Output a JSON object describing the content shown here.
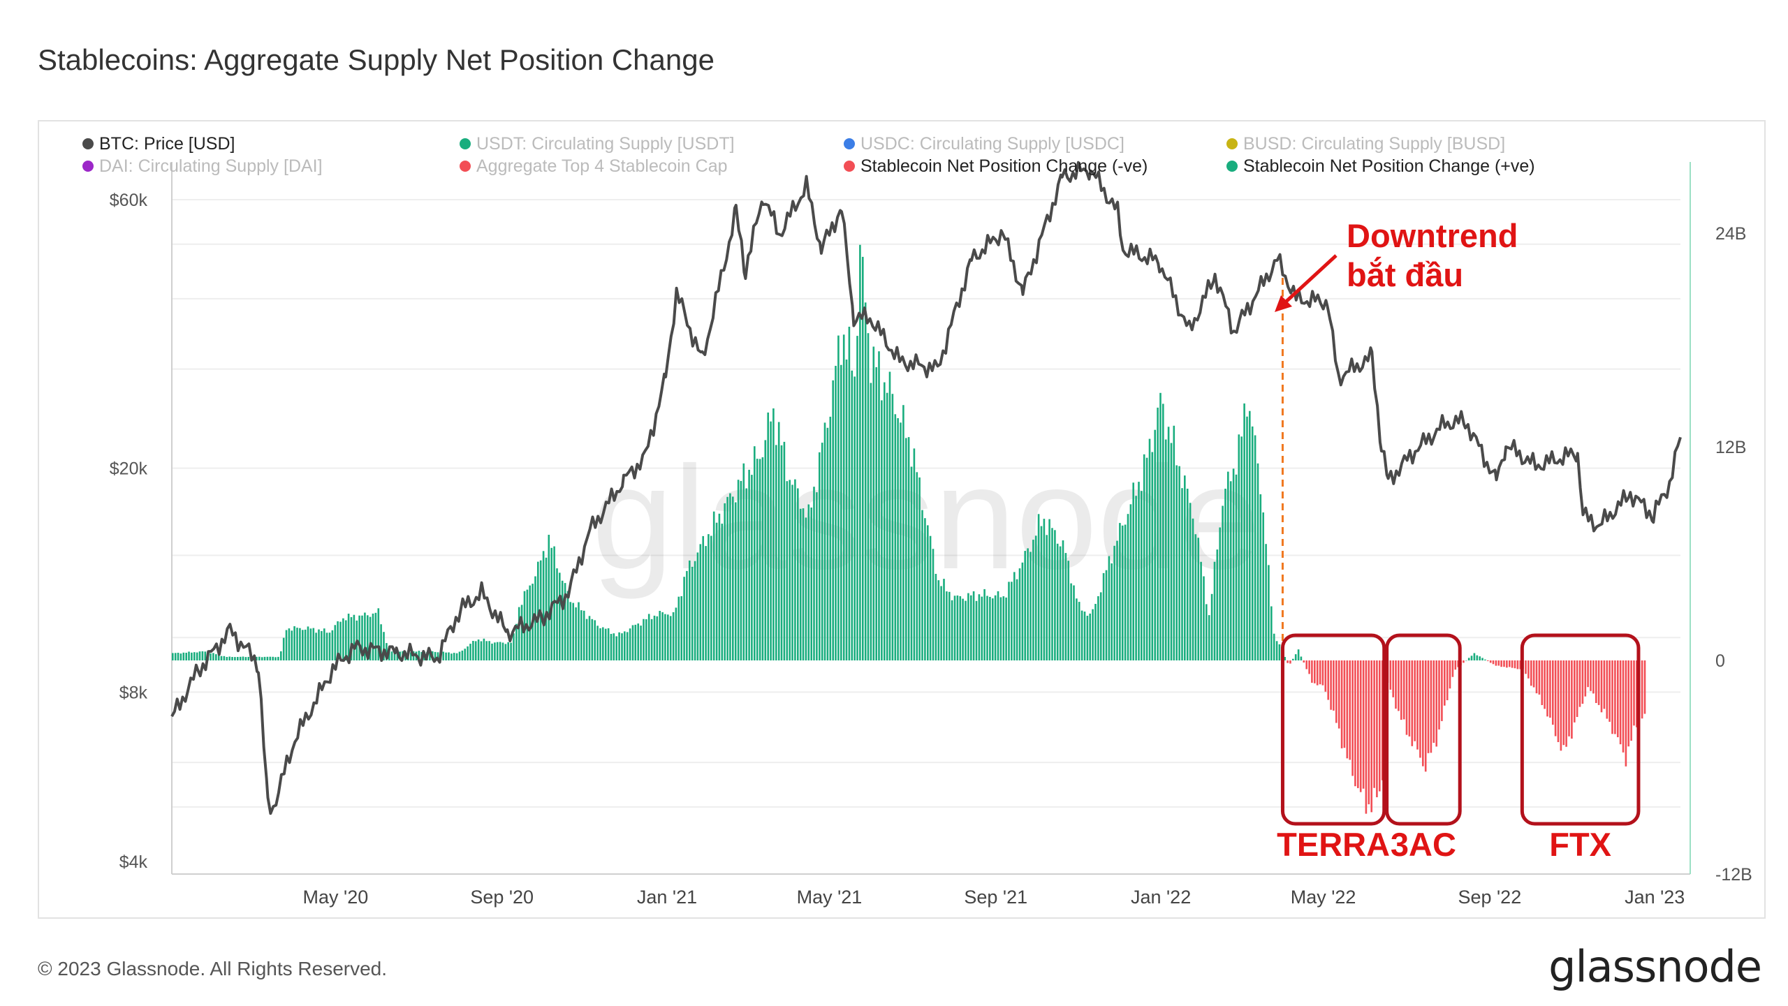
{
  "title": "Stablecoins: Aggregate Supply Net Position Change",
  "footer": "© 2023 Glassnode. All Rights Reserved.",
  "brand": "glassnode",
  "watermark": "glassnode",
  "colors": {
    "price_line": "#4a4a4a",
    "positive": "#19ad7e",
    "negative": "#f24e55",
    "annotation": "#e01414",
    "box": "#b3111b",
    "start_marker": "#f07820",
    "grid": "#eeeeee"
  },
  "legend": [
    {
      "label": "BTC: Price [USD]",
      "color": "#4a4a4a",
      "active": true
    },
    {
      "label": "USDT: Circulating Supply [USDT]",
      "color": "#19ad7e",
      "active": false
    },
    {
      "label": "USDC: Circulating Supply [USDC]",
      "color": "#3c7ee6",
      "active": false
    },
    {
      "label": "BUSD: Circulating Supply [BUSD]",
      "color": "#c8b414",
      "active": false
    },
    {
      "label": "DAI: Circulating Supply [DAI]",
      "color": "#9c27c8",
      "active": false
    },
    {
      "label": "Aggregate Top 4 Stablecoin Cap",
      "color": "#f24e55",
      "active": false
    },
    {
      "label": "Stablecoin Net Position Change (-ve)",
      "color": "#f24e55",
      "active": true
    },
    {
      "label": "Stablecoin Net Position Change (+ve)",
      "color": "#19ad7e",
      "active": true
    }
  ],
  "annotations": {
    "downtrend": [
      "Downtrend",
      "bắt đầu"
    ],
    "boxes": [
      {
        "label": "TERRA",
        "start": "2022-04-01",
        "end": "2022-06-15"
      },
      {
        "label": "3AC",
        "start": "2022-06-17",
        "end": "2022-08-10"
      },
      {
        "label": "FTX",
        "start": "2022-09-25",
        "end": "2022-12-20"
      }
    ],
    "start_date": "2022-04-01"
  },
  "chart_data": {
    "type": "line",
    "x_axis": {
      "ticks": [
        "May '20",
        "Sep '20",
        "Jan '21",
        "May '21",
        "Sep '21",
        "Jan '22",
        "May '22",
        "Sep '22",
        "Jan '23"
      ],
      "range": [
        "2020-01-01",
        "2023-01-20"
      ]
    },
    "y_left": {
      "scale": "log",
      "ticks": [
        "$60k",
        "$20k",
        "$8k",
        "$4k"
      ],
      "tick_values": [
        60000,
        20000,
        8000,
        4000
      ],
      "range": [
        3800,
        70000
      ]
    },
    "y_right": {
      "ticks": [
        "24B",
        "12B",
        "0",
        "-12B"
      ],
      "tick_values": [
        24,
        12,
        0,
        -12
      ],
      "range": [
        -12,
        28
      ],
      "unit": "B"
    },
    "series": [
      {
        "name": "BTC: Price [USD]",
        "axis": "left",
        "points": [
          [
            "2020-01-01",
            7200
          ],
          [
            "2020-01-20",
            8700
          ],
          [
            "2020-02-13",
            10300
          ],
          [
            "2020-03-05",
            9000
          ],
          [
            "2020-03-12",
            5000
          ],
          [
            "2020-03-16",
            5000
          ],
          [
            "2020-04-01",
            6600
          ],
          [
            "2020-04-29",
            8800
          ],
          [
            "2020-05-15",
            9600
          ],
          [
            "2020-06-15",
            9400
          ],
          [
            "2020-07-15",
            9200
          ],
          [
            "2020-08-01",
            11200
          ],
          [
            "2020-08-17",
            12000
          ],
          [
            "2020-09-05",
            10200
          ],
          [
            "2020-09-30",
            10800
          ],
          [
            "2020-10-20",
            12000
          ],
          [
            "2020-11-05",
            15500
          ],
          [
            "2020-11-30",
            19000
          ],
          [
            "2020-12-16",
            21000
          ],
          [
            "2020-12-31",
            29000
          ],
          [
            "2021-01-08",
            41000
          ],
          [
            "2021-01-27",
            31000
          ],
          [
            "2021-02-21",
            57000
          ],
          [
            "2021-02-28",
            45000
          ],
          [
            "2021-03-13",
            61000
          ],
          [
            "2021-03-25",
            52000
          ],
          [
            "2021-04-14",
            63500
          ],
          [
            "2021-04-25",
            49000
          ],
          [
            "2021-05-10",
            58000
          ],
          [
            "2021-05-19",
            37000
          ],
          [
            "2021-05-31",
            37000
          ],
          [
            "2021-06-22",
            31000
          ],
          [
            "2021-07-20",
            30000
          ],
          [
            "2021-08-14",
            47000
          ],
          [
            "2021-09-06",
            52500
          ],
          [
            "2021-09-21",
            41000
          ],
          [
            "2021-10-20",
            66000
          ],
          [
            "2021-11-10",
            68000
          ],
          [
            "2021-11-30",
            57000
          ],
          [
            "2021-12-04",
            49000
          ],
          [
            "2021-12-31",
            46500
          ],
          [
            "2022-01-22",
            35000
          ],
          [
            "2022-02-10",
            44000
          ],
          [
            "2022-02-24",
            35000
          ],
          [
            "2022-03-28",
            47000
          ],
          [
            "2022-04-11",
            40000
          ],
          [
            "2022-05-04",
            39500
          ],
          [
            "2022-05-12",
            29000
          ],
          [
            "2022-06-06",
            31500
          ],
          [
            "2022-06-13",
            22000
          ],
          [
            "2022-06-18",
            19000
          ],
          [
            "2022-07-08",
            21500
          ],
          [
            "2022-07-30",
            24000
          ],
          [
            "2022-08-14",
            24300
          ],
          [
            "2022-09-06",
            19000
          ],
          [
            "2022-09-13",
            22000
          ],
          [
            "2022-10-05",
            20200
          ],
          [
            "2022-11-05",
            21300
          ],
          [
            "2022-11-09",
            16500
          ],
          [
            "2022-11-21",
            15800
          ],
          [
            "2022-12-14",
            18000
          ],
          [
            "2022-12-31",
            16500
          ],
          [
            "2023-01-12",
            18800
          ],
          [
            "2023-01-20",
            22700
          ]
        ]
      },
      {
        "name": "Stablecoin Net Position Change",
        "axis": "right",
        "unit": "B",
        "points": [
          [
            "2020-01-01",
            0.4
          ],
          [
            "2020-01-25",
            0.5
          ],
          [
            "2020-02-10",
            0.2
          ],
          [
            "2020-03-20",
            0.2
          ],
          [
            "2020-03-25",
            1.8
          ],
          [
            "2020-04-10",
            1.8
          ],
          [
            "2020-04-26",
            1.6
          ],
          [
            "2020-05-06",
            2.4
          ],
          [
            "2020-05-20",
            2.5
          ],
          [
            "2020-06-01",
            2.7
          ],
          [
            "2020-06-09",
            0.5
          ],
          [
            "2020-07-10",
            0.5
          ],
          [
            "2020-07-30",
            0.4
          ],
          [
            "2020-08-13",
            1.2
          ],
          [
            "2020-08-26",
            1.0
          ],
          [
            "2020-09-08",
            1.0
          ],
          [
            "2020-09-13",
            3.0
          ],
          [
            "2020-09-26",
            5.0
          ],
          [
            "2020-10-05",
            6.8
          ],
          [
            "2020-10-20",
            3.5
          ],
          [
            "2020-11-10",
            2.0
          ],
          [
            "2020-11-25",
            1.4
          ],
          [
            "2020-12-20",
            2.5
          ],
          [
            "2020-12-31",
            2.7
          ],
          [
            "2021-01-05",
            2.5
          ],
          [
            "2021-01-15",
            5.0
          ],
          [
            "2021-01-30",
            7.0
          ],
          [
            "2021-02-15",
            9.0
          ],
          [
            "2021-02-28",
            10.5
          ],
          [
            "2021-03-10",
            11.5
          ],
          [
            "2021-03-20",
            14.0
          ],
          [
            "2021-03-31",
            10.5
          ],
          [
            "2021-04-15",
            8.0
          ],
          [
            "2021-04-30",
            14.0
          ],
          [
            "2021-05-10",
            18.5
          ],
          [
            "2021-05-19",
            16.0
          ],
          [
            "2021-05-23",
            23.0
          ],
          [
            "2021-05-31",
            17.0
          ],
          [
            "2021-06-15",
            15.0
          ],
          [
            "2021-06-30",
            12.0
          ],
          [
            "2021-07-20",
            4.5
          ],
          [
            "2021-08-01",
            3.5
          ],
          [
            "2021-08-20",
            3.7
          ],
          [
            "2021-09-06",
            3.6
          ],
          [
            "2021-09-20",
            5.5
          ],
          [
            "2021-10-05",
            8.0
          ],
          [
            "2021-10-20",
            6.5
          ],
          [
            "2021-11-01",
            3.0
          ],
          [
            "2021-11-10",
            2.5
          ],
          [
            "2021-11-25",
            6.0
          ],
          [
            "2021-12-10",
            9.0
          ],
          [
            "2021-12-20",
            11.0
          ],
          [
            "2021-12-31",
            14.5
          ],
          [
            "2022-01-10",
            12.0
          ],
          [
            "2022-01-25",
            8.0
          ],
          [
            "2022-02-05",
            2.5
          ],
          [
            "2022-02-15",
            9.0
          ],
          [
            "2022-02-28",
            12.0
          ],
          [
            "2022-03-05",
            15.0
          ],
          [
            "2022-03-15",
            10.0
          ],
          [
            "2022-03-25",
            1.5
          ],
          [
            "2022-04-05",
            -0.3
          ],
          [
            "2022-04-12",
            0.6
          ],
          [
            "2022-04-22",
            -1.2
          ],
          [
            "2022-05-01",
            -1.5
          ],
          [
            "2022-05-10",
            -3.5
          ],
          [
            "2022-05-20",
            -6.0
          ],
          [
            "2022-06-01",
            -8.2
          ],
          [
            "2022-06-12",
            -7.5
          ],
          [
            "2022-06-17",
            -1.3
          ],
          [
            "2022-06-28",
            -3.5
          ],
          [
            "2022-07-08",
            -5.0
          ],
          [
            "2022-07-15",
            -6.0
          ],
          [
            "2022-07-25",
            -4.0
          ],
          [
            "2022-08-05",
            -0.6
          ],
          [
            "2022-08-20",
            0.4
          ],
          [
            "2022-09-05",
            -0.3
          ],
          [
            "2022-09-25",
            -0.5
          ],
          [
            "2022-10-10",
            -2.5
          ],
          [
            "2022-10-25",
            -5.2
          ],
          [
            "2022-11-05",
            -3.0
          ],
          [
            "2022-11-12",
            -1.5
          ],
          [
            "2022-11-28",
            -3.5
          ],
          [
            "2022-12-10",
            -5.5
          ],
          [
            "2022-12-20",
            -3.0
          ],
          [
            "2022-12-25",
            -3.3
          ]
        ]
      }
    ]
  }
}
